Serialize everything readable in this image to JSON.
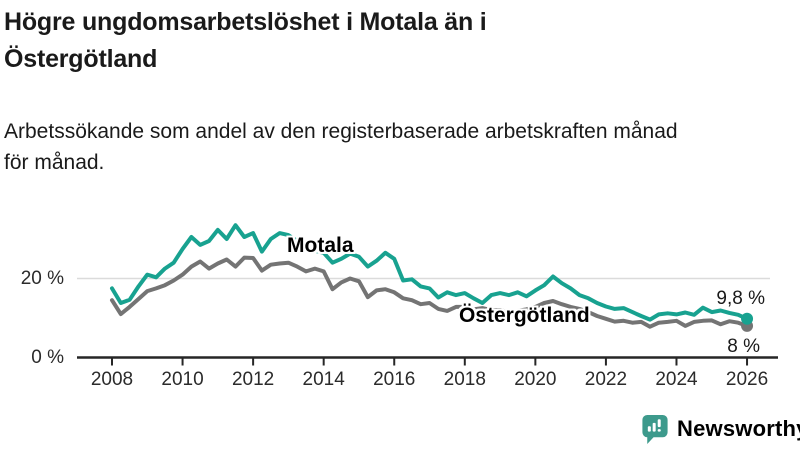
{
  "title": {
    "line1": "Högre ungdomsarbetslöshet i Motala än i",
    "line2": "Östergötland"
  },
  "subtitle": {
    "line1": "Arbetssökande som andel av den registerbaserade arbetskraften månad",
    "line2": "för månad."
  },
  "footer": {
    "brand": "Newsworthy",
    "brand_color": "#3D9A8C",
    "logo_icon": "newsworthy-speech-bubble-bar-chart-icon"
  },
  "colors": {
    "motala": "#18A290",
    "ostergotland": "#747474",
    "gridline": "#DBDBDB",
    "axis": "#262626",
    "text": "#1a1a1a"
  },
  "chart_data": {
    "type": "line",
    "title": "Högre ungdomsarbetslöshet i Motala än i Östergötland",
    "subtitle": "Arbetssökande som andel av den registerbaserade arbetskraften månad för månad.",
    "y_unit": "%",
    "x_range": [
      2008,
      2026.2
    ],
    "y_range": [
      0,
      36
    ],
    "grid": "horizontal-20-only",
    "legend_position": "inline-labels-on-lines",
    "x_ticks": [
      "2008",
      "2010",
      "2012",
      "2014",
      "2016",
      "2018",
      "2020",
      "2022",
      "2024",
      "2026"
    ],
    "y_ticks": [
      {
        "value": 20,
        "label": "20 %"
      },
      {
        "value": 0,
        "label": "0 %"
      }
    ],
    "x": [
      2008,
      2008.25,
      2008.5,
      2008.75,
      2009,
      2009.25,
      2009.5,
      2009.75,
      2010,
      2010.25,
      2010.5,
      2010.75,
      2011,
      2011.25,
      2011.5,
      2011.75,
      2012,
      2012.25,
      2012.5,
      2012.75,
      2013,
      2013.25,
      2013.5,
      2013.75,
      2014,
      2014.25,
      2014.5,
      2014.75,
      2015,
      2015.25,
      2015.5,
      2015.75,
      2016,
      2016.25,
      2016.5,
      2016.75,
      2017,
      2017.25,
      2017.5,
      2017.75,
      2018,
      2018.25,
      2018.5,
      2018.75,
      2019,
      2019.25,
      2019.5,
      2019.75,
      2020,
      2020.25,
      2020.5,
      2020.75,
      2021,
      2021.25,
      2021.5,
      2021.75,
      2022,
      2022.25,
      2022.5,
      2022.75,
      2023,
      2023.25,
      2023.5,
      2023.75,
      2024,
      2024.25,
      2024.5,
      2024.75,
      2025,
      2025.25,
      2025.5,
      2025.75,
      2026
    ],
    "series": [
      {
        "name": "Motala",
        "color": "#18A290",
        "end_label": "9,8 %",
        "end_value": 9.8,
        "values": [
          17.5,
          13.8,
          14.6,
          18.0,
          21.0,
          20.3,
          22.5,
          24.0,
          27.5,
          30.5,
          28.5,
          29.5,
          32.3,
          30.0,
          33.5,
          30.5,
          31.5,
          26.8,
          30.0,
          31.5,
          31.0,
          29.5,
          28.0,
          27.0,
          26.5,
          24.0,
          25.0,
          26.3,
          25.5,
          23.0,
          24.5,
          26.5,
          25.0,
          19.5,
          19.8,
          18.0,
          17.5,
          15.2,
          16.5,
          15.8,
          16.3,
          15.0,
          13.8,
          15.8,
          16.3,
          15.8,
          16.5,
          15.5,
          17.0,
          18.3,
          20.5,
          18.8,
          17.5,
          15.8,
          15.0,
          13.8,
          12.9,
          12.3,
          12.5,
          11.5,
          10.5,
          9.6,
          10.9,
          11.2,
          10.9,
          11.4,
          10.8,
          12.6,
          11.5,
          11.9,
          11.3,
          10.8,
          9.8
        ]
      },
      {
        "name": "Östergötland",
        "color": "#747474",
        "end_label": "8 %",
        "end_value": 8,
        "values": [
          14.5,
          11.0,
          12.8,
          14.8,
          16.8,
          17.5,
          18.3,
          19.5,
          21.0,
          23.0,
          24.3,
          22.5,
          23.8,
          24.8,
          23.0,
          25.3,
          25.2,
          22.0,
          23.5,
          23.8,
          24.0,
          23.0,
          21.8,
          22.5,
          21.8,
          17.3,
          19.0,
          20.0,
          19.3,
          15.3,
          17.0,
          17.3,
          16.5,
          15.0,
          14.5,
          13.5,
          13.8,
          12.3,
          11.8,
          12.8,
          12.8,
          12.2,
          12.5,
          12.0,
          12.0,
          11.5,
          11.8,
          12.2,
          12.8,
          13.8,
          14.3,
          13.5,
          12.8,
          12.3,
          11.5,
          10.5,
          9.8,
          9.1,
          9.3,
          8.8,
          9.0,
          7.8,
          8.8,
          9.0,
          9.3,
          8.0,
          9.0,
          9.3,
          9.4,
          8.4,
          9.2,
          8.8,
          8.0
        ]
      }
    ]
  }
}
